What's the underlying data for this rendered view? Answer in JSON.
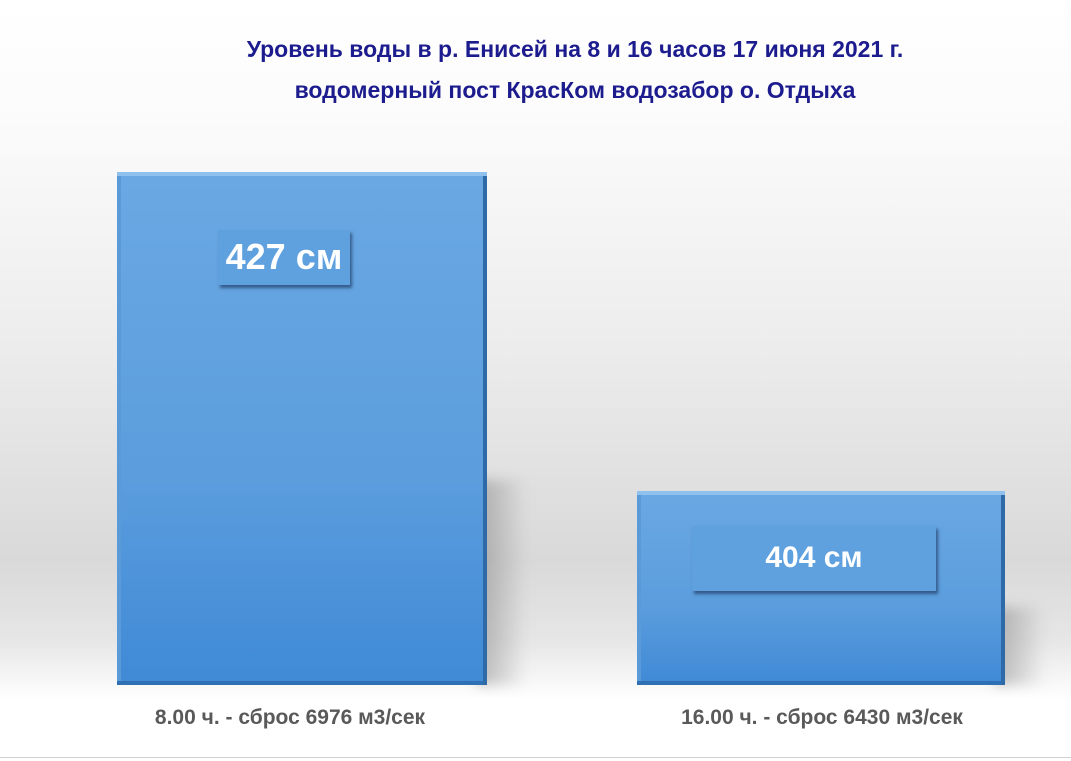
{
  "chart_data": {
    "type": "bar",
    "title": [
      "Уровень воды в  р. Енисей на 8 и 16 часов 17 июня 2021 г.",
      "водомерный пост КрасКом водозабор о. Отдыха"
    ],
    "categories": [
      "8.00 ч. - сброс 6976 м3/сек",
      "16.00 ч. - сброс 6430 м3/сек"
    ],
    "values": [
      427,
      404
    ],
    "data_labels": [
      "427 см",
      "404 см"
    ],
    "unit": "см",
    "ylim": [
      390,
      430
    ],
    "xlabel": "",
    "ylabel": "",
    "grid": false,
    "legend": "none",
    "bar_color": "#5b9ddd",
    "title_color": "#1c1c8e"
  }
}
